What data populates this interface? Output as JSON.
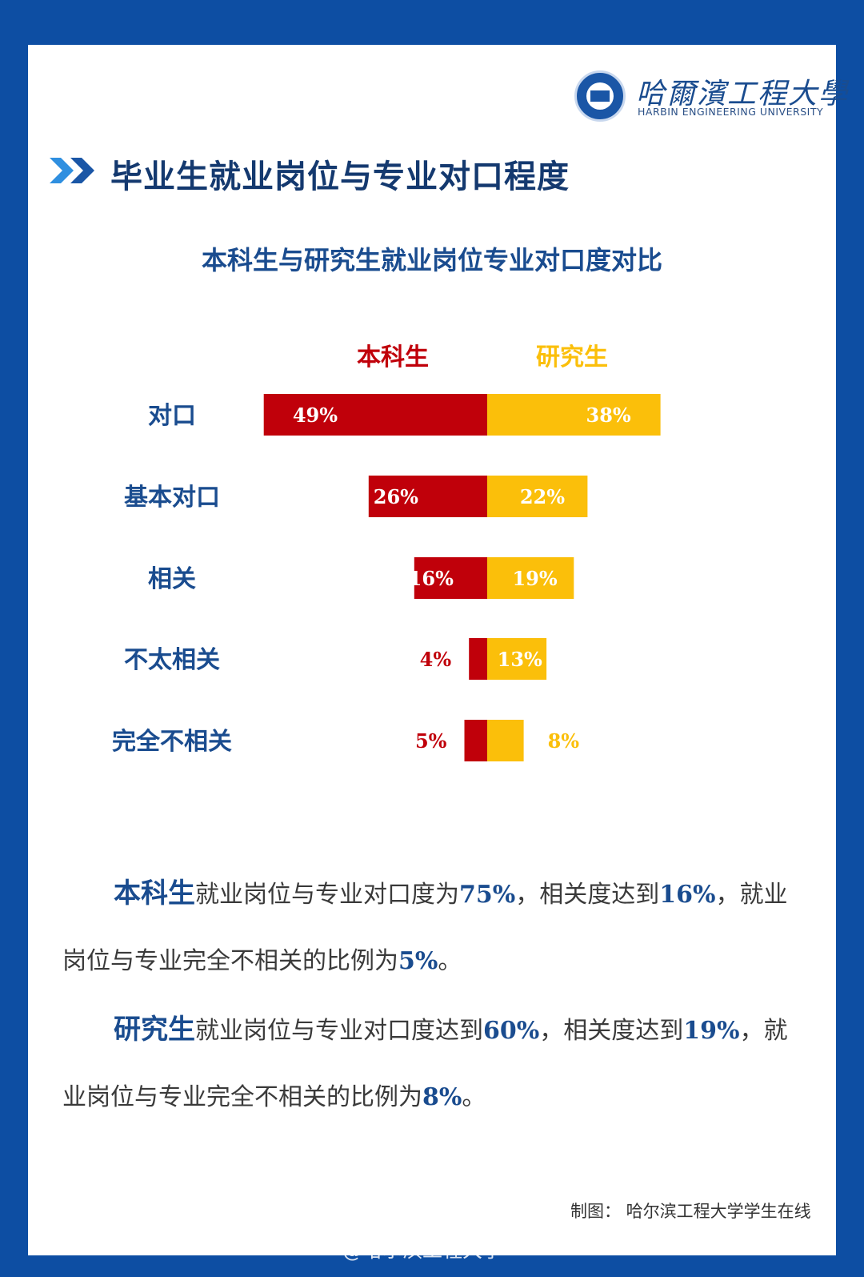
{
  "header": {
    "university_cn": "哈爾濱工程大學",
    "university_en": "HARBIN ENGINEERING UNIVERSITY",
    "title": "毕业生就业岗位与专业对口程度"
  },
  "colors": {
    "undergrad": "#c0000a",
    "grad": "#fbbf0a",
    "blue": "#1a4c8f"
  },
  "chart_data": {
    "type": "bar",
    "title": "本科生与研究生就业岗位专业对口度对比",
    "orientation": "horizontal-diverging",
    "legend": "top",
    "categories": [
      "对口",
      "基本对口",
      "相关",
      "不太相关",
      "完全不相关"
    ],
    "series": [
      {
        "name": "本科生",
        "values": [
          49,
          26,
          16,
          4,
          5
        ],
        "labels": [
          "49%",
          "26%",
          "16%",
          "4%",
          "5%"
        ]
      },
      {
        "name": "研究生",
        "values": [
          38,
          22,
          19,
          13,
          8
        ],
        "labels": [
          "38%",
          "22%",
          "19%",
          "13%",
          "8%"
        ]
      }
    ]
  },
  "summary": {
    "p1": {
      "lead": "本科生",
      "t1": "就业岗位与专业对口度为",
      "v1": "75%",
      "t2": "，相关度达到",
      "v2": "16%",
      "t3": "，就业岗位与专业完全不相关的比例为",
      "v3": "5%",
      "t4": "。"
    },
    "p2": {
      "lead": "研究生",
      "t1": "就业岗位与专业对口度达到",
      "v1": "60%",
      "t2": "，相关度达到",
      "v2": "19%",
      "t3": "，就业岗位与专业完全不相关的比例为",
      "v3": "8%",
      "t4": "。"
    }
  },
  "credit": "制图：  哈尔滨工程大学学生在线",
  "watermark": "@哈尔滨工程大学"
}
